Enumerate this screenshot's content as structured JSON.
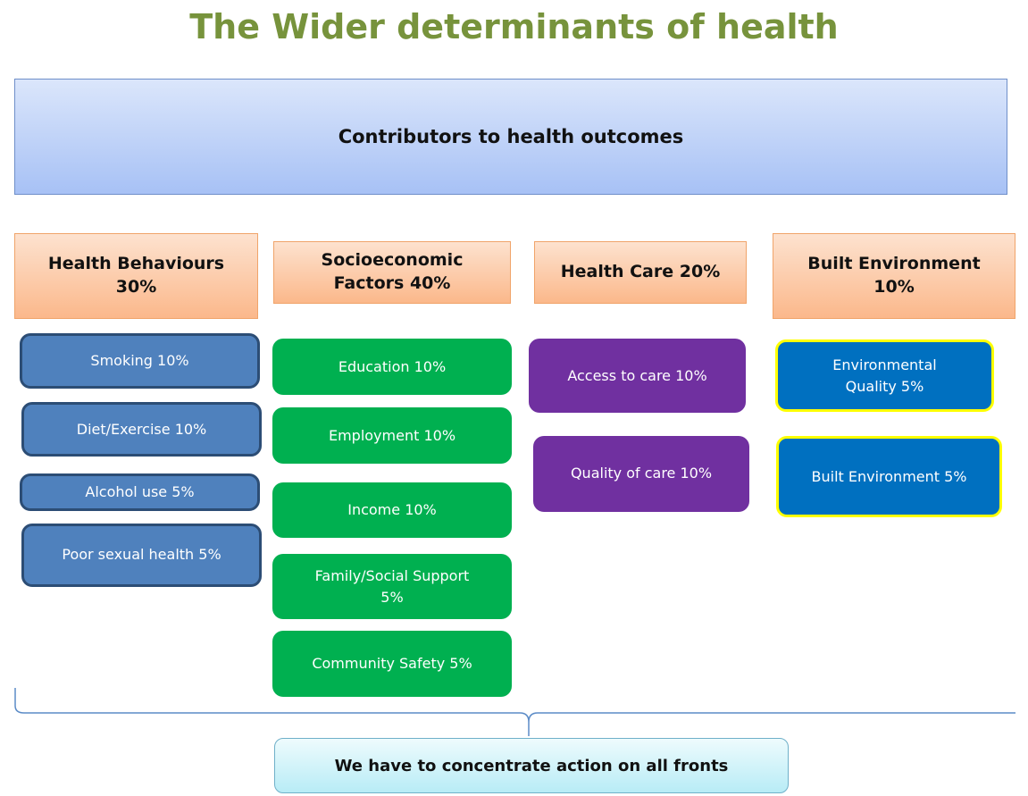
{
  "title": "The Wider determinants of health",
  "banner": "Contributors to health outcomes",
  "columns": [
    {
      "header": "Health Behaviours 30%",
      "items": [
        "Smoking 10%",
        "Diet/Exercise 10%",
        "Alcohol use 5%",
        "Poor sexual health 5%"
      ]
    },
    {
      "header": "Socioeconomic Factors 40%",
      "items": [
        "Education 10%",
        "Employment 10%",
        "Income 10%",
        "Family/Social Support 5%",
        "Community Safety 5%"
      ]
    },
    {
      "header": "Health Care 20%",
      "items": [
        "Access to care 10%",
        "Quality of care 10%"
      ]
    },
    {
      "header": "Built Environment 10%",
      "items": [
        "Environmental Quality 5%",
        "Built Environment 5%"
      ]
    }
  ],
  "footer": "We have to concentrate action on all fronts"
}
